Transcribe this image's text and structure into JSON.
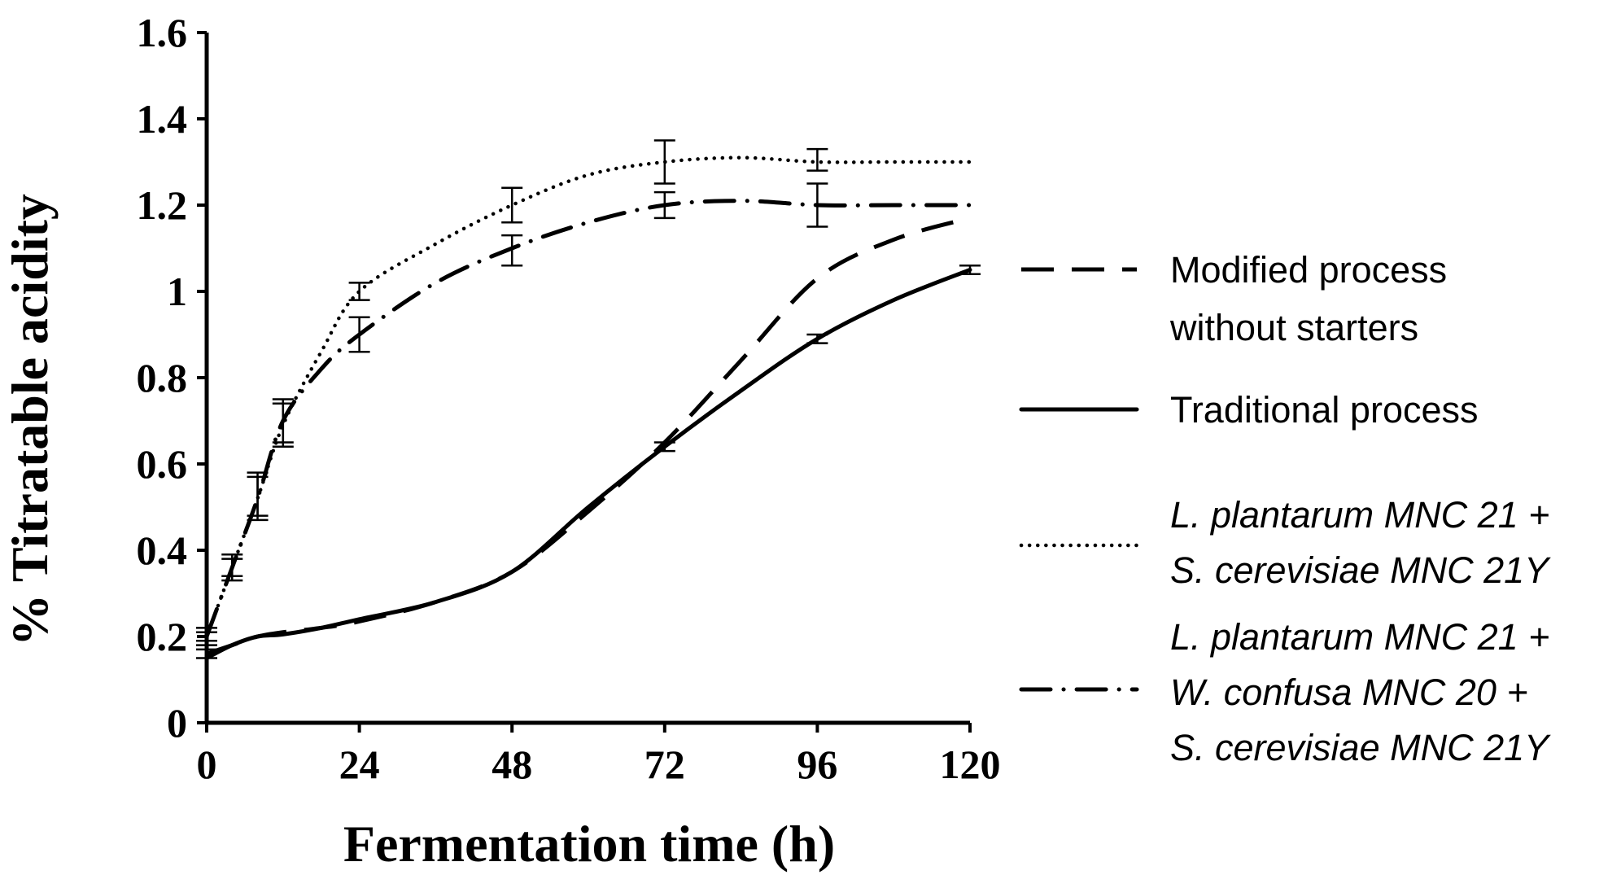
{
  "chart_data": {
    "type": "line",
    "title": "",
    "xlabel": "Fermentation time (h)",
    "ylabel": "% Titratable acidity",
    "xlim": [
      0,
      120
    ],
    "ylim": [
      0,
      1.6
    ],
    "xticks": [
      "0",
      "24",
      "48",
      "72",
      "96",
      "120"
    ],
    "yticks": [
      "0",
      "0.2",
      "0.4",
      "0.6",
      "0.8",
      "1",
      "1.2",
      "1.4",
      "1.6"
    ],
    "grid": false,
    "legend_position": "right",
    "series": [
      {
        "name_lines": [
          "Modified process",
          "without starters"
        ],
        "italic": false,
        "style": "dashed",
        "x": [
          0,
          4,
          8,
          12,
          18,
          24,
          36,
          48,
          60,
          72,
          84,
          96,
          108,
          120
        ],
        "y": [
          0.16,
          0.18,
          0.2,
          0.21,
          0.22,
          0.235,
          0.28,
          0.35,
          0.49,
          0.65,
          0.84,
          1.03,
          1.12,
          1.17
        ],
        "error_bars": []
      },
      {
        "name_lines": [
          "Traditional process"
        ],
        "italic": false,
        "style": "solid",
        "x": [
          0,
          4,
          8,
          12,
          18,
          24,
          36,
          48,
          60,
          72,
          84,
          96,
          108,
          120
        ],
        "y": [
          0.15,
          0.18,
          0.2,
          0.205,
          0.22,
          0.24,
          0.28,
          0.35,
          0.5,
          0.64,
          0.77,
          0.89,
          0.98,
          1.05
        ],
        "error_bars": [
          {
            "x": 0,
            "low": 0.15,
            "high": 0.17
          },
          {
            "x": 72,
            "low": 0.63,
            "high": 0.65
          },
          {
            "x": 96,
            "low": 0.88,
            "high": 0.9
          },
          {
            "x": 120,
            "low": 1.04,
            "high": 1.06
          }
        ]
      },
      {
        "name_lines": [
          "L. plantarum MNC 21 +",
          "S. cerevisiae MNC 21Y"
        ],
        "italic": true,
        "style": "dotted",
        "x": [
          0,
          4,
          8,
          12,
          18,
          24,
          36,
          48,
          60,
          72,
          84,
          96,
          108,
          120
        ],
        "y": [
          0.2,
          0.36,
          0.52,
          0.69,
          0.86,
          1.0,
          1.11,
          1.2,
          1.27,
          1.3,
          1.31,
          1.3,
          1.3,
          1.3
        ],
        "error_bars": [
          {
            "x": 0,
            "low": 0.19,
            "high": 0.22
          },
          {
            "x": 4,
            "low": 0.33,
            "high": 0.39
          },
          {
            "x": 8,
            "low": 0.47,
            "high": 0.57
          },
          {
            "x": 12,
            "low": 0.64,
            "high": 0.74
          },
          {
            "x": 24,
            "low": 0.98,
            "high": 1.02
          },
          {
            "x": 48,
            "low": 1.16,
            "high": 1.24
          },
          {
            "x": 72,
            "low": 1.25,
            "high": 1.35
          },
          {
            "x": 96,
            "low": 1.28,
            "high": 1.33
          }
        ]
      },
      {
        "name_lines": [
          "L. plantarum MNC 21 +",
          "W. confusa MNC 20 +",
          "S. cerevisiae MNC 21Y"
        ],
        "italic": true,
        "style": "dash-dot",
        "x": [
          0,
          4,
          8,
          12,
          18,
          24,
          36,
          48,
          60,
          72,
          84,
          96,
          108,
          120
        ],
        "y": [
          0.2,
          0.36,
          0.52,
          0.7,
          0.82,
          0.9,
          1.02,
          1.1,
          1.16,
          1.2,
          1.21,
          1.2,
          1.2,
          1.2
        ],
        "error_bars": [
          {
            "x": 0,
            "low": 0.18,
            "high": 0.21
          },
          {
            "x": 4,
            "low": 0.34,
            "high": 0.38
          },
          {
            "x": 8,
            "low": 0.48,
            "high": 0.58
          },
          {
            "x": 12,
            "low": 0.65,
            "high": 0.75
          },
          {
            "x": 24,
            "low": 0.86,
            "high": 0.94
          },
          {
            "x": 48,
            "low": 1.06,
            "high": 1.13
          },
          {
            "x": 72,
            "low": 1.17,
            "high": 1.23
          },
          {
            "x": 96,
            "low": 1.15,
            "high": 1.25
          }
        ]
      }
    ]
  }
}
